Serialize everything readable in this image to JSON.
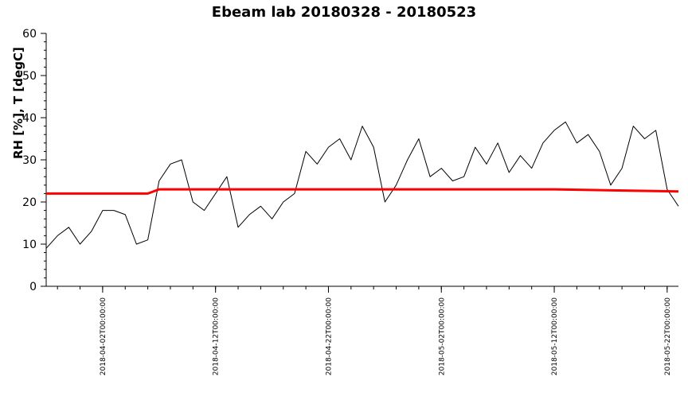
{
  "chart_data": {
    "type": "line",
    "title": "Ebeam lab 20180328 - 20180523",
    "xlabel": "",
    "ylabel": "RH [%], T [degC]",
    "ylim": [
      0,
      60
    ],
    "xlim": [
      "2018-03-28T00:00:00",
      "2018-05-23T00:00:00"
    ],
    "yticks": [
      0,
      10,
      20,
      30,
      40,
      50,
      60
    ],
    "xticks": [
      "2018-04-02T00:00:00",
      "2018-04-12T00:00:00",
      "2018-04-22T00:00:00",
      "2018-05-02T00:00:00",
      "2018-05-12T00:00:00",
      "2018-05-22T00:00:00"
    ],
    "grid": false,
    "series": [
      {
        "color": "#000000",
        "x": [
          "2018-03-28",
          "2018-03-29",
          "2018-03-30",
          "2018-03-31",
          "2018-04-01",
          "2018-04-02",
          "2018-04-03",
          "2018-04-04",
          "2018-04-05",
          "2018-04-06",
          "2018-04-07",
          "2018-04-08",
          "2018-04-09",
          "2018-04-10",
          "2018-04-11",
          "2018-04-12",
          "2018-04-13",
          "2018-04-14",
          "2018-04-15",
          "2018-04-16",
          "2018-04-17",
          "2018-04-18",
          "2018-04-19",
          "2018-04-20",
          "2018-04-21",
          "2018-04-22",
          "2018-04-23",
          "2018-04-24",
          "2018-04-25",
          "2018-04-26",
          "2018-04-27",
          "2018-04-28",
          "2018-04-29",
          "2018-04-30",
          "2018-05-01",
          "2018-05-02",
          "2018-05-03",
          "2018-05-04",
          "2018-05-05",
          "2018-05-06",
          "2018-05-07",
          "2018-05-08",
          "2018-05-09",
          "2018-05-10",
          "2018-05-11",
          "2018-05-12",
          "2018-05-13",
          "2018-05-14",
          "2018-05-15",
          "2018-05-16",
          "2018-05-17",
          "2018-05-18",
          "2018-05-19",
          "2018-05-20",
          "2018-05-21",
          "2018-05-22",
          "2018-05-23"
        ],
        "values": [
          9,
          12,
          14,
          10,
          13,
          18,
          18,
          17,
          10,
          11,
          25,
          29,
          30,
          20,
          18,
          22,
          26,
          14,
          17,
          19,
          16,
          20,
          22,
          32,
          29,
          33,
          35,
          30,
          38,
          33,
          20,
          24,
          30,
          35,
          26,
          28,
          25,
          26,
          33,
          29,
          34,
          27,
          31,
          28,
          34,
          37,
          39,
          34,
          36,
          32,
          24,
          28,
          38,
          35,
          37,
          23,
          19
        ]
      },
      {
        "color": "#ff0000",
        "x": [
          "2018-03-28",
          "2018-04-02",
          "2018-04-06",
          "2018-04-07",
          "2018-04-10",
          "2018-04-22",
          "2018-05-02",
          "2018-05-12",
          "2018-05-23"
        ],
        "values": [
          22,
          22,
          22,
          23,
          23,
          23,
          23,
          23,
          22.5
        ]
      }
    ]
  }
}
